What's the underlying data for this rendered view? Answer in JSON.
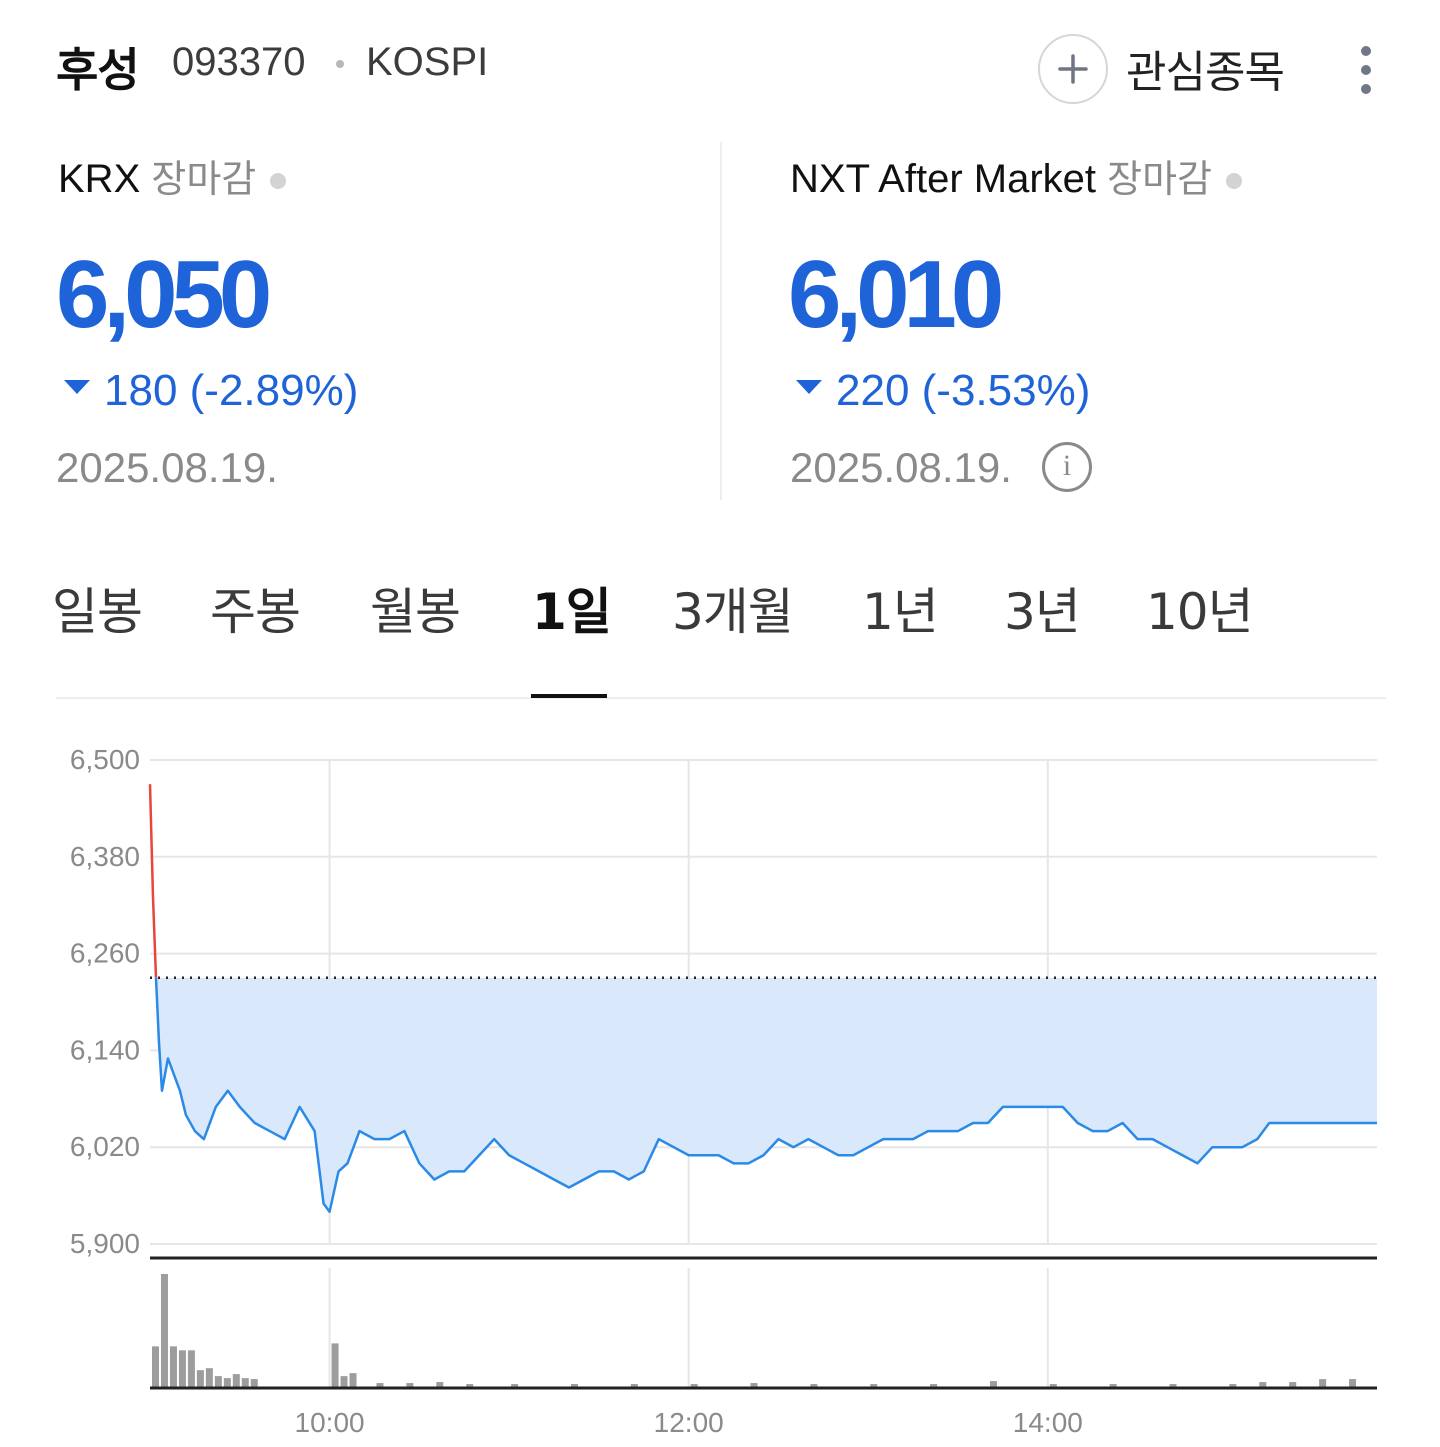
{
  "header": {
    "name": "후성",
    "code": "093370",
    "market": "KOSPI",
    "watch_label": "관심종목"
  },
  "krx": {
    "venue": "KRX",
    "status": "장마감",
    "price": "6,050",
    "change": "180 (-2.89%)",
    "direction": "down",
    "date": "2025.08.19."
  },
  "nxt": {
    "venue": "NXT After Market",
    "status": "장마감",
    "price": "6,010",
    "change": "220 (-3.53%)",
    "direction": "down",
    "date": "2025.08.19."
  },
  "tabs": [
    {
      "label": "일봉"
    },
    {
      "label": "주봉"
    },
    {
      "label": "월봉"
    },
    {
      "label": "1일",
      "active": true
    },
    {
      "label": "3개월"
    },
    {
      "label": "1년"
    },
    {
      "label": "3년"
    },
    {
      "label": "10년"
    }
  ],
  "colors": {
    "price_down": "#1e63d8",
    "line": "#2a8ae6",
    "area_fill": "#d9e9fb",
    "above_prev_line": "#e8453c",
    "volume_bar": "#9d9d9d"
  },
  "chart_data": {
    "type": "line",
    "ylim": [
      5900,
      6500
    ],
    "y_ticks": [
      "6,500",
      "6,380",
      "6,260",
      "6,140",
      "6,020",
      "5,900"
    ],
    "x_ticks": [
      "10:00",
      "12:00",
      "14:00"
    ],
    "x_range": [
      "09:00",
      "15:50"
    ],
    "reference_line": 6230,
    "series": [
      {
        "points": [
          [
            "09:00",
            6470
          ],
          [
            "09:01",
            6330
          ],
          [
            "09:02",
            6230
          ],
          [
            "09:03",
            6150
          ],
          [
            "09:04",
            6090
          ],
          [
            "09:06",
            6130
          ],
          [
            "09:08",
            6110
          ],
          [
            "09:10",
            6090
          ],
          [
            "09:12",
            6060
          ],
          [
            "09:15",
            6040
          ],
          [
            "09:18",
            6030
          ],
          [
            "09:22",
            6070
          ],
          [
            "09:26",
            6090
          ],
          [
            "09:30",
            6070
          ],
          [
            "09:35",
            6050
          ],
          [
            "09:40",
            6040
          ],
          [
            "09:45",
            6030
          ],
          [
            "09:50",
            6070
          ],
          [
            "09:55",
            6040
          ],
          [
            "09:58",
            5950
          ],
          [
            "10:00",
            5940
          ],
          [
            "10:03",
            5990
          ],
          [
            "10:06",
            6000
          ],
          [
            "10:10",
            6040
          ],
          [
            "10:15",
            6030
          ],
          [
            "10:20",
            6030
          ],
          [
            "10:25",
            6040
          ],
          [
            "10:30",
            6000
          ],
          [
            "10:35",
            5980
          ],
          [
            "10:40",
            5990
          ],
          [
            "10:45",
            5990
          ],
          [
            "10:50",
            6010
          ],
          [
            "10:55",
            6030
          ],
          [
            "11:00",
            6010
          ],
          [
            "11:05",
            6000
          ],
          [
            "11:10",
            5990
          ],
          [
            "11:15",
            5980
          ],
          [
            "11:20",
            5970
          ],
          [
            "11:25",
            5980
          ],
          [
            "11:30",
            5990
          ],
          [
            "11:35",
            5990
          ],
          [
            "11:40",
            5980
          ],
          [
            "11:45",
            5990
          ],
          [
            "11:50",
            6030
          ],
          [
            "11:55",
            6020
          ],
          [
            "12:00",
            6010
          ],
          [
            "12:05",
            6010
          ],
          [
            "12:10",
            6010
          ],
          [
            "12:15",
            6000
          ],
          [
            "12:20",
            6000
          ],
          [
            "12:25",
            6010
          ],
          [
            "12:30",
            6030
          ],
          [
            "12:35",
            6020
          ],
          [
            "12:40",
            6030
          ],
          [
            "12:45",
            6020
          ],
          [
            "12:50",
            6010
          ],
          [
            "12:55",
            6010
          ],
          [
            "13:00",
            6020
          ],
          [
            "13:05",
            6030
          ],
          [
            "13:10",
            6030
          ],
          [
            "13:15",
            6030
          ],
          [
            "13:20",
            6040
          ],
          [
            "13:25",
            6040
          ],
          [
            "13:30",
            6040
          ],
          [
            "13:35",
            6050
          ],
          [
            "13:40",
            6050
          ],
          [
            "13:45",
            6070
          ],
          [
            "13:50",
            6070
          ],
          [
            "13:55",
            6070
          ],
          [
            "14:00",
            6070
          ],
          [
            "14:05",
            6070
          ],
          [
            "14:10",
            6050
          ],
          [
            "14:15",
            6040
          ],
          [
            "14:20",
            6040
          ],
          [
            "14:25",
            6050
          ],
          [
            "14:30",
            6030
          ],
          [
            "14:35",
            6030
          ],
          [
            "14:40",
            6020
          ],
          [
            "14:45",
            6010
          ],
          [
            "14:50",
            6000
          ],
          [
            "14:55",
            6020
          ],
          [
            "15:00",
            6020
          ],
          [
            "15:05",
            6020
          ],
          [
            "15:10",
            6030
          ],
          [
            "15:12",
            6040
          ],
          [
            "15:14",
            6050
          ],
          [
            "15:15",
            6050
          ],
          [
            "15:50",
            6050
          ]
        ]
      }
    ],
    "volume": [
      [
        "09:00",
        42
      ],
      [
        "09:03",
        115
      ],
      [
        "09:06",
        42
      ],
      [
        "09:09",
        38
      ],
      [
        "09:12",
        38
      ],
      [
        "09:15",
        18
      ],
      [
        "09:18",
        20
      ],
      [
        "09:21",
        12
      ],
      [
        "09:24",
        10
      ],
      [
        "09:27",
        14
      ],
      [
        "09:30",
        10
      ],
      [
        "09:33",
        9
      ],
      [
        "10:00",
        45
      ],
      [
        "10:03",
        12
      ],
      [
        "10:06",
        15
      ],
      [
        "10:15",
        5
      ],
      [
        "10:25",
        5
      ],
      [
        "10:35",
        6
      ],
      [
        "10:45",
        4
      ],
      [
        "11:00",
        4
      ],
      [
        "11:20",
        4
      ],
      [
        "11:40",
        4
      ],
      [
        "12:00",
        4
      ],
      [
        "12:20",
        5
      ],
      [
        "12:40",
        4
      ],
      [
        "13:00",
        4
      ],
      [
        "13:20",
        4
      ],
      [
        "13:40",
        7
      ],
      [
        "14:00",
        4
      ],
      [
        "14:20",
        4
      ],
      [
        "14:40",
        4
      ],
      [
        "15:00",
        4
      ],
      [
        "15:10",
        6
      ],
      [
        "15:20",
        6
      ],
      [
        "15:30",
        9
      ],
      [
        "15:40",
        9
      ]
    ]
  }
}
